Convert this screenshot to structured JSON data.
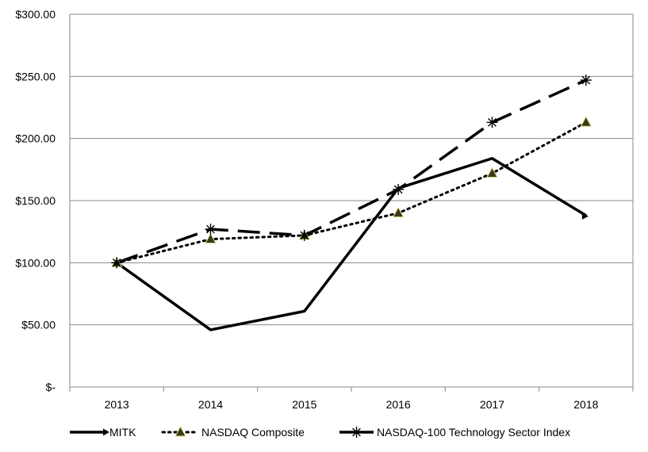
{
  "chart_data": {
    "type": "line",
    "title": "",
    "xlabel": "",
    "ylabel": "",
    "categories": [
      "2013",
      "2014",
      "2015",
      "2016",
      "2017",
      "2018"
    ],
    "ylim": [
      0,
      300
    ],
    "yticks": [
      0,
      50,
      100,
      150,
      200,
      250,
      300
    ],
    "ytick_labels": [
      "$-",
      "$50.00",
      "$100.00",
      "$150.00",
      "$200.00",
      "$250.00",
      "$300.00"
    ],
    "grid": "horizontal",
    "legend_position": "bottom",
    "series": [
      {
        "name": "MITK",
        "values": [
          100,
          46,
          61,
          160,
          184,
          138
        ],
        "style": "solid",
        "marker": "none",
        "color": "#000000"
      },
      {
        "name": "NASDAQ Composite",
        "values": [
          100,
          119,
          122,
          140,
          172,
          213
        ],
        "style": "dotted",
        "marker": "triangle",
        "color": "#000000",
        "marker_fill": "#3a3a1a"
      },
      {
        "name": "NASDAQ-100 Technology Sector Index",
        "values": [
          100,
          127,
          122,
          159,
          213,
          247
        ],
        "style": "dashed",
        "marker": "asterisk",
        "color": "#000000"
      }
    ]
  }
}
